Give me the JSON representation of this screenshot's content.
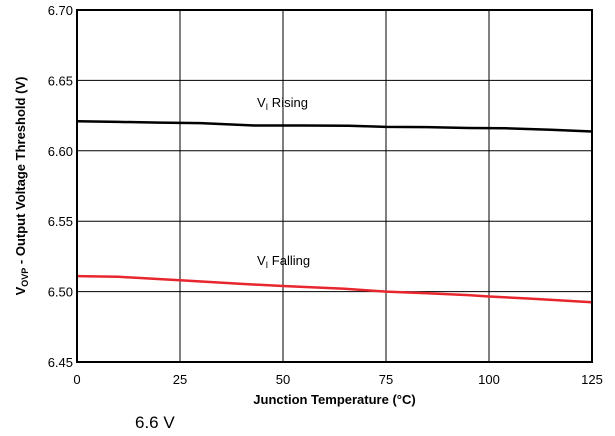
{
  "chart_data": {
    "type": "line",
    "xlabel": "Junction Temperature (°C)",
    "ylabel_main": "V",
    "ylabel_sub": "OVP",
    "ylabel_rest": " - Output Voltage Threshold (V)",
    "xlim": [
      0,
      125
    ],
    "ylim": [
      6.45,
      6.7
    ],
    "xticks": [
      0,
      25,
      50,
      75,
      100,
      125
    ],
    "yticks": [
      6.45,
      6.5,
      6.55,
      6.6,
      6.65,
      6.7
    ],
    "ytick_labels": [
      "6.45",
      "6.50",
      "6.55",
      "6.60",
      "6.65",
      "6.70"
    ],
    "grid": true,
    "series": [
      {
        "label_main": "V",
        "label_sub": "I",
        "label_rest": " Rising",
        "color": "#000000",
        "x": [
          0,
          10,
          20,
          30,
          43,
          55,
          66,
          75,
          85,
          95,
          104,
          115,
          125
        ],
        "y": [
          6.621,
          6.6205,
          6.62,
          6.6197,
          6.618,
          6.618,
          6.6178,
          6.617,
          6.6168,
          6.6162,
          6.616,
          6.615,
          6.6137
        ]
      },
      {
        "label_main": "V",
        "label_sub": "I",
        "label_rest": " Falling",
        "color": "#e8262d",
        "x": [
          0,
          10,
          25,
          40,
          50,
          65,
          75,
          85,
          95,
          100,
          110,
          125
        ],
        "y": [
          6.511,
          6.5105,
          6.508,
          6.5055,
          6.504,
          6.502,
          6.5,
          6.4988,
          6.4975,
          6.4965,
          6.495,
          6.4925
        ]
      }
    ]
  },
  "caption": "6.6 V"
}
